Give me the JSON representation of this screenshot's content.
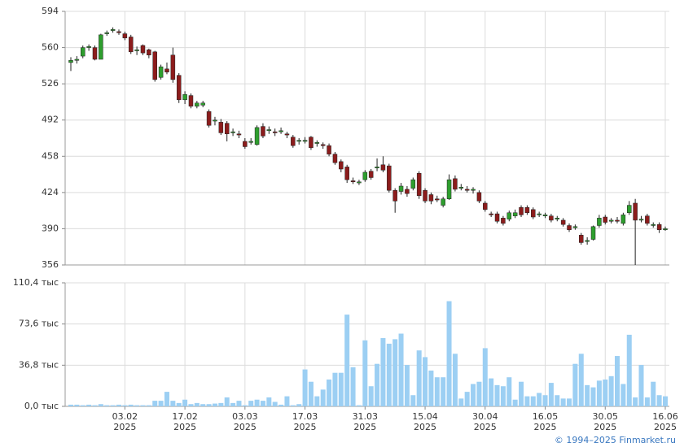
{
  "chart_data": [
    {
      "type": "candlestick",
      "up_color": "#2e9e2e",
      "down_color": "#8c1c1c",
      "doji_color": "#222222",
      "grid": true,
      "ylim": [
        356,
        594
      ],
      "yticks": [
        356,
        390,
        424,
        458,
        492,
        526,
        560,
        594
      ],
      "categories": [
        null,
        null,
        null,
        null,
        null,
        null,
        null,
        null,
        null,
        "03.02\n2025",
        null,
        null,
        null,
        null,
        null,
        null,
        null,
        null,
        null,
        "17.02\n2025",
        null,
        null,
        null,
        null,
        null,
        null,
        null,
        null,
        null,
        "03.03\n2025",
        null,
        null,
        null,
        null,
        null,
        null,
        null,
        null,
        null,
        "17.03\n2025",
        null,
        null,
        null,
        null,
        null,
        null,
        null,
        null,
        null,
        "31.03\n2025",
        null,
        null,
        null,
        null,
        null,
        null,
        null,
        null,
        null,
        "15.04\n2025",
        null,
        null,
        null,
        null,
        null,
        null,
        null,
        null,
        null,
        "30.04\n2025",
        null,
        null,
        null,
        null,
        null,
        null,
        null,
        null,
        null,
        "16.05\n2025",
        null,
        null,
        null,
        null,
        null,
        null,
        null,
        null,
        null,
        "30.05\n2025",
        null,
        null,
        null,
        null,
        null,
        null,
        null,
        null,
        null,
        "16.06\n2025"
      ],
      "open": [
        546,
        548,
        552,
        560,
        560,
        549,
        573,
        576,
        575,
        573,
        570,
        557,
        562,
        558,
        556,
        532,
        540,
        553,
        534,
        511,
        515,
        505,
        506,
        500,
        491,
        490,
        489,
        480,
        479,
        472,
        471,
        469,
        486,
        482,
        481,
        481,
        479,
        476,
        472,
        472,
        476,
        470,
        469,
        468,
        460,
        453,
        448,
        435,
        433,
        436,
        444,
        447,
        450,
        449,
        426,
        425,
        427,
        428,
        442,
        426,
        422,
        418,
        412,
        418,
        437,
        428,
        427,
        426,
        424,
        414,
        404,
        404,
        400,
        399,
        402,
        410,
        410,
        408,
        403,
        402,
        402,
        399,
        398,
        393,
        391,
        384,
        378,
        380,
        393,
        401,
        397,
        398,
        395,
        405,
        414,
        398,
        402,
        393,
        394,
        389
      ],
      "close": [
        548,
        549,
        560,
        561,
        549,
        572,
        574,
        577,
        574,
        569,
        556,
        558,
        555,
        553,
        530,
        542,
        537,
        530,
        511,
        516,
        505,
        508,
        508,
        487,
        492,
        480,
        479,
        481,
        478,
        467,
        472,
        485,
        477,
        483,
        480,
        482,
        478,
        468,
        473,
        473,
        466,
        471,
        468,
        460,
        452,
        446,
        436,
        434,
        434,
        443,
        438,
        448,
        445,
        426,
        416,
        430,
        423,
        436,
        421,
        416,
        416,
        417,
        418,
        436,
        427,
        429,
        426,
        427,
        416,
        408,
        403,
        397,
        395,
        405,
        405,
        403,
        405,
        401,
        404,
        403,
        398,
        400,
        394,
        389,
        392,
        377,
        379,
        392,
        400,
        396,
        398,
        397,
        403,
        412,
        398,
        399,
        395,
        394,
        389,
        390
      ],
      "high": [
        551,
        552,
        562,
        563,
        562,
        573,
        576,
        579,
        577,
        575,
        572,
        561,
        563,
        559,
        557,
        544,
        546,
        560,
        536,
        519,
        517,
        510,
        510,
        502,
        495,
        493,
        491,
        484,
        482,
        475,
        475,
        487,
        489,
        486,
        484,
        485,
        481,
        478,
        475,
        476,
        477,
        473,
        471,
        470,
        462,
        455,
        450,
        438,
        436,
        445,
        446,
        456,
        458,
        451,
        428,
        433,
        430,
        438,
        444,
        428,
        424,
        421,
        420,
        441,
        440,
        432,
        430,
        429,
        426,
        416,
        406,
        406,
        402,
        407,
        408,
        412,
        412,
        410,
        406,
        405,
        404,
        402,
        400,
        395,
        394,
        386,
        382,
        393,
        403,
        403,
        400,
        401,
        405,
        416,
        418,
        402,
        404,
        396,
        396,
        392
      ],
      "low": [
        538,
        545,
        550,
        557,
        548,
        549,
        571,
        574,
        572,
        567,
        554,
        553,
        553,
        550,
        528,
        530,
        535,
        527,
        508,
        507,
        503,
        503,
        504,
        485,
        487,
        478,
        472,
        477,
        475,
        465,
        469,
        468,
        475,
        479,
        477,
        479,
        475,
        466,
        469,
        470,
        464,
        467,
        465,
        458,
        450,
        443,
        433,
        432,
        431,
        434,
        436,
        444,
        443,
        424,
        405,
        422,
        420,
        426,
        418,
        414,
        413,
        415,
        410,
        417,
        425,
        426,
        424,
        423,
        414,
        406,
        401,
        395,
        393,
        397,
        400,
        401,
        403,
        399,
        401,
        400,
        396,
        397,
        392,
        387,
        389,
        375,
        375,
        379,
        391,
        394,
        395,
        395,
        393,
        403,
        356,
        396,
        393,
        391,
        386,
        388
      ]
    },
    {
      "type": "bar",
      "color": "#9ccff3",
      "grid": true,
      "ylim": [
        0,
        110.4
      ],
      "yticks": [
        {
          "value": 0,
          "label": "0,0 тыс"
        },
        {
          "value": 36.8,
          "label": "36,8 тыс"
        },
        {
          "value": 73.6,
          "label": "73,6 тыс"
        },
        {
          "value": 110.4,
          "label": "110,4 тыс"
        }
      ],
      "categories": [
        null,
        null,
        null,
        null,
        null,
        null,
        null,
        null,
        null,
        "03.02\n2025",
        null,
        null,
        null,
        null,
        null,
        null,
        null,
        null,
        null,
        "17.02\n2025",
        null,
        null,
        null,
        null,
        null,
        null,
        null,
        null,
        null,
        "03.03\n2025",
        null,
        null,
        null,
        null,
        null,
        null,
        null,
        null,
        null,
        "17.03\n2025",
        null,
        null,
        null,
        null,
        null,
        null,
        null,
        null,
        null,
        "31.03\n2025",
        null,
        null,
        null,
        null,
        null,
        null,
        null,
        null,
        null,
        "15.04\n2025",
        null,
        null,
        null,
        null,
        null,
        null,
        null,
        null,
        null,
        "30.04\n2025",
        null,
        null,
        null,
        null,
        null,
        null,
        null,
        null,
        null,
        "16.05\n2025",
        null,
        null,
        null,
        null,
        null,
        null,
        null,
        null,
        null,
        "30.05\n2025",
        null,
        null,
        null,
        null,
        null,
        null,
        null,
        null,
        null,
        "16.06\n2025"
      ],
      "values": [
        1.5,
        1.5,
        1,
        1.5,
        1,
        2,
        1,
        1,
        1.5,
        1,
        1.5,
        1,
        1,
        1,
        5,
        5,
        13,
        5,
        3,
        6,
        2,
        3,
        2,
        2,
        2.5,
        3,
        8,
        3,
        5,
        1,
        5,
        6,
        5,
        8,
        4,
        1.5,
        9,
        1,
        2,
        33,
        22,
        9,
        15,
        24,
        30,
        30,
        82,
        35,
        1,
        59,
        18,
        38,
        61,
        56,
        60,
        65,
        37,
        10,
        50,
        44,
        32,
        26,
        26,
        94,
        47,
        7,
        13,
        20,
        22,
        52,
        25,
        19,
        18,
        26,
        6,
        22,
        9,
        9,
        12,
        10,
        21,
        10,
        7,
        7,
        38,
        47,
        19,
        17,
        23,
        24,
        27,
        45,
        20,
        64,
        8,
        37,
        8,
        22,
        10,
        9
      ]
    }
  ],
  "footer": "© 1994–2025 Finmarket.ru"
}
